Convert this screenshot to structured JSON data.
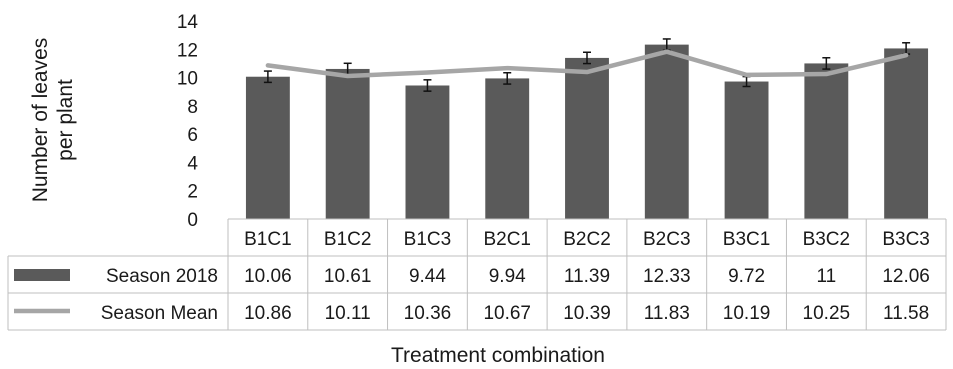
{
  "chart_data": {
    "type": "bar",
    "xlabel": "Treatment combination",
    "ylabel_lines": [
      "Number of leaves",
      "per plant"
    ],
    "ylim": [
      0,
      14
    ],
    "yticks": [
      0,
      2,
      4,
      6,
      8,
      10,
      12,
      14
    ],
    "grid": false,
    "legend_placement": "data-table",
    "categories": [
      "B1C1",
      "B1C2",
      "B1C3",
      "B2C1",
      "B2C2",
      "B2C3",
      "B3C1",
      "B3C2",
      "B3C3"
    ],
    "series": [
      {
        "name": "Season 2018",
        "type": "bar",
        "color": "#5a5a5a",
        "values": [
          10.06,
          10.61,
          9.44,
          9.94,
          11.39,
          12.33,
          9.72,
          11,
          12.06
        ],
        "value_labels": [
          "10.06",
          "10.61",
          "9.44",
          "9.94",
          "11.39",
          "12.33",
          "9.72",
          "11",
          "12.06"
        ],
        "error": [
          0.4,
          0.4,
          0.4,
          0.4,
          0.4,
          0.4,
          0.35,
          0.4,
          0.4
        ]
      },
      {
        "name": "Season Mean",
        "type": "line",
        "color": "#a6a6a6",
        "values": [
          10.86,
          10.11,
          10.36,
          10.67,
          10.39,
          11.83,
          10.19,
          10.25,
          11.58
        ],
        "value_labels": [
          "10.86",
          "10.11",
          "10.36",
          "10.67",
          "10.39",
          "11.83",
          "10.19",
          "10.25",
          "11.58"
        ]
      }
    ]
  }
}
